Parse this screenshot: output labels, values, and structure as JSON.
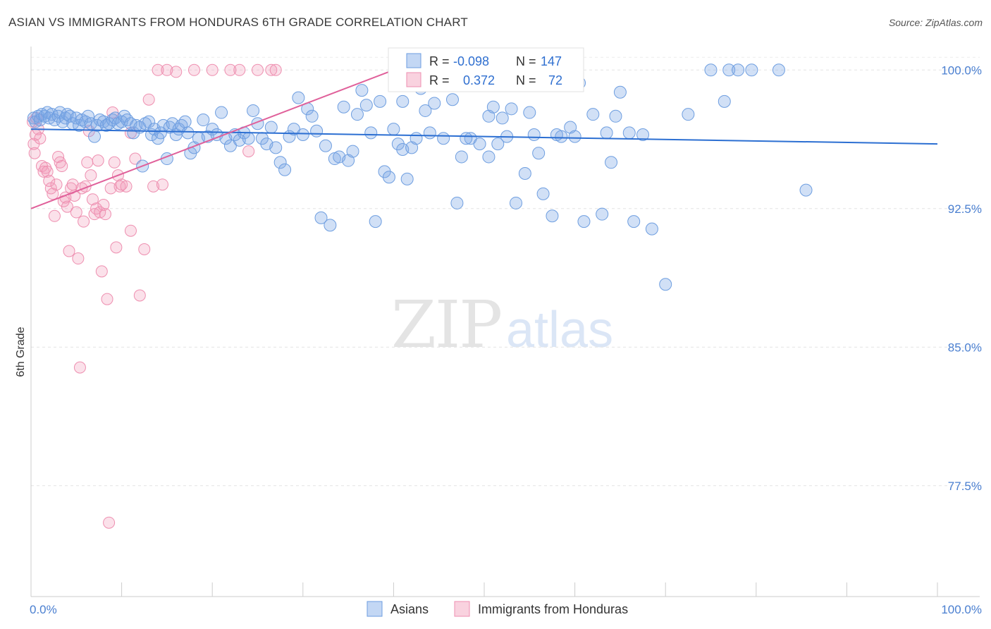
{
  "header": {
    "title": "ASIAN VS IMMIGRANTS FROM HONDURAS 6TH GRADE CORRELATION CHART",
    "source": "Source: ZipAtlas.com"
  },
  "watermark": {
    "zip": "ZIP",
    "atlas": "atlas"
  },
  "legend_top": {
    "rows": [
      {
        "r_label": "R =",
        "r_value": "-0.098",
        "n_label": "N =",
        "n_value": "147",
        "color": "#7aa7e6"
      },
      {
        "r_label": "R =",
        "r_value": "0.372",
        "n_label": "N =",
        "n_value": "72",
        "color": "#f29bb8"
      }
    ]
  },
  "legend_bottom": {
    "items": [
      {
        "label": "Asians",
        "color": "#7aa7e6"
      },
      {
        "label": "Immigrants from Honduras",
        "color": "#f29bb8"
      }
    ]
  },
  "colors": {
    "asian_fill": "rgba(122,167,230,0.35)",
    "asian_stroke": "#6e9ee0",
    "asian_line": "#2c6fd2",
    "honduras_fill": "rgba(242,155,184,0.30)",
    "honduras_stroke": "#ee8fb0",
    "honduras_line": "#e0609a"
  },
  "chart_data": {
    "type": "scatter",
    "title": "ASIAN VS IMMIGRANTS FROM HONDURAS 6TH GRADE CORRELATION CHART",
    "xlabel": "",
    "ylabel": "6th Grade",
    "xlim": [
      0,
      100
    ],
    "ylim": [
      71.5,
      101.5
    ],
    "x_ticks": [
      {
        "value": 0,
        "label": "0.0%"
      },
      {
        "value": 100,
        "label": "100.0%"
      }
    ],
    "y_ticks": [
      {
        "value": 100,
        "label": "100.0%"
      },
      {
        "value": 92.5,
        "label": "92.5%"
      },
      {
        "value": 85,
        "label": "85.0%"
      },
      {
        "value": 77.5,
        "label": "77.5%"
      }
    ],
    "grid": true,
    "legend_position": "top-center",
    "series": [
      {
        "name": "Asians",
        "r": -0.098,
        "n": 147,
        "trend": {
          "x": [
            0,
            100
          ],
          "y": [
            96.8,
            96.0
          ]
        },
        "points": [
          [
            0.3,
            97.4
          ],
          [
            0.5,
            97.2
          ],
          [
            0.8,
            97.5
          ],
          [
            1.0,
            97.3
          ],
          [
            1.2,
            97.6
          ],
          [
            1.5,
            97.5
          ],
          [
            1.8,
            97.7
          ],
          [
            2.0,
            97.4
          ],
          [
            2.3,
            97.6
          ],
          [
            2.6,
            97.3
          ],
          [
            3.0,
            97.5
          ],
          [
            3.2,
            97.7
          ],
          [
            3.5,
            97.2
          ],
          [
            3.8,
            97.4
          ],
          [
            4.0,
            97.6
          ],
          [
            4.3,
            97.5
          ],
          [
            4.6,
            97.1
          ],
          [
            5.0,
            97.4
          ],
          [
            5.3,
            97.0
          ],
          [
            5.6,
            97.3
          ],
          [
            6.0,
            97.2
          ],
          [
            6.3,
            97.5
          ],
          [
            6.6,
            97.1
          ],
          [
            7.0,
            96.4
          ],
          [
            7.3,
            97.0
          ],
          [
            7.6,
            97.3
          ],
          [
            8.0,
            97.2
          ],
          [
            8.3,
            97.0
          ],
          [
            8.6,
            97.1
          ],
          [
            9.0,
            97.3
          ],
          [
            9.3,
            97.4
          ],
          [
            9.6,
            97.1
          ],
          [
            10.0,
            97.2
          ],
          [
            10.3,
            97.5
          ],
          [
            10.6,
            97.3
          ],
          [
            11.0,
            97.1
          ],
          [
            11.3,
            96.6
          ],
          [
            11.6,
            97.0
          ],
          [
            12.0,
            96.9
          ],
          [
            12.3,
            94.8
          ],
          [
            12.6,
            97.1
          ],
          [
            13.0,
            97.2
          ],
          [
            13.3,
            96.5
          ],
          [
            13.6,
            96.8
          ],
          [
            14.0,
            96.3
          ],
          [
            14.3,
            96.6
          ],
          [
            14.6,
            97.0
          ],
          [
            15.0,
            95.2
          ],
          [
            15.3,
            96.9
          ],
          [
            15.6,
            97.1
          ],
          [
            16.0,
            96.5
          ],
          [
            16.3,
            96.8
          ],
          [
            16.6,
            97.0
          ],
          [
            17.0,
            97.2
          ],
          [
            17.3,
            96.6
          ],
          [
            17.6,
            95.5
          ],
          [
            18.0,
            95.8
          ],
          [
            18.5,
            96.3
          ],
          [
            19.0,
            97.3
          ],
          [
            19.5,
            96.4
          ],
          [
            20.0,
            96.8
          ],
          [
            20.5,
            96.5
          ],
          [
            21.0,
            97.7
          ],
          [
            21.5,
            96.3
          ],
          [
            22.0,
            95.9
          ],
          [
            22.5,
            96.5
          ],
          [
            23.0,
            96.2
          ],
          [
            23.5,
            96.6
          ],
          [
            24.0,
            96.3
          ],
          [
            24.5,
            97.8
          ],
          [
            25.0,
            97.1
          ],
          [
            25.5,
            96.3
          ],
          [
            26.0,
            96.0
          ],
          [
            26.5,
            96.9
          ],
          [
            27.0,
            95.8
          ],
          [
            27.5,
            95.0
          ],
          [
            28.0,
            94.6
          ],
          [
            28.5,
            96.4
          ],
          [
            29.0,
            96.8
          ],
          [
            29.5,
            98.5
          ],
          [
            30.0,
            96.5
          ],
          [
            30.5,
            97.9
          ],
          [
            31.0,
            97.5
          ],
          [
            31.5,
            96.7
          ],
          [
            32.0,
            92.0
          ],
          [
            32.5,
            95.9
          ],
          [
            33.0,
            91.6
          ],
          [
            33.5,
            95.2
          ],
          [
            34.0,
            95.3
          ],
          [
            34.5,
            98.0
          ],
          [
            35.0,
            95.1
          ],
          [
            35.5,
            95.6
          ],
          [
            36.0,
            97.6
          ],
          [
            36.5,
            98.9
          ],
          [
            37.0,
            98.1
          ],
          [
            37.5,
            96.6
          ],
          [
            38.0,
            91.8
          ],
          [
            38.5,
            98.3
          ],
          [
            39.0,
            94.5
          ],
          [
            39.5,
            94.2
          ],
          [
            40.0,
            96.8
          ],
          [
            40.5,
            96.0
          ],
          [
            41.0,
            95.7
          ],
          [
            41.5,
            94.1
          ],
          [
            42.0,
            95.8
          ],
          [
            42.5,
            96.3
          ],
          [
            43.0,
            99.0
          ],
          [
            43.5,
            97.8
          ],
          [
            44.5,
            98.2
          ],
          [
            45.5,
            96.3
          ],
          [
            46.5,
            98.4
          ],
          [
            47.0,
            92.8
          ],
          [
            47.5,
            95.3
          ],
          [
            48.5,
            96.3
          ],
          [
            49.5,
            96.0
          ],
          [
            50.5,
            95.3
          ],
          [
            51.5,
            96.0
          ],
          [
            52.5,
            96.4
          ],
          [
            53.5,
            92.8
          ],
          [
            54.5,
            94.4
          ],
          [
            55.5,
            96.5
          ],
          [
            56.5,
            93.3
          ],
          [
            57.5,
            92.1
          ],
          [
            58.5,
            96.4
          ],
          [
            59.5,
            96.9
          ],
          [
            61.0,
            91.8
          ],
          [
            62.0,
            97.6
          ],
          [
            63.0,
            92.2
          ],
          [
            64.0,
            95.0
          ],
          [
            65.0,
            98.8
          ],
          [
            66.5,
            91.8
          ],
          [
            67.5,
            96.5
          ],
          [
            68.5,
            91.4
          ],
          [
            70.0,
            88.4
          ],
          [
            72.5,
            97.6
          ],
          [
            75.0,
            100.0
          ],
          [
            77.0,
            100.0
          ],
          [
            78.0,
            100.0
          ],
          [
            79.5,
            100.0
          ],
          [
            82.5,
            100.0
          ],
          [
            76.5,
            98.3
          ],
          [
            85.5,
            93.5
          ],
          [
            48.0,
            96.3
          ],
          [
            52.0,
            97.4
          ],
          [
            44.0,
            96.6
          ],
          [
            41.0,
            98.3
          ],
          [
            58.0,
            96.5
          ],
          [
            63.5,
            96.6
          ],
          [
            56.0,
            95.5
          ],
          [
            50.5,
            97.5
          ],
          [
            55.0,
            97.7
          ],
          [
            60.0,
            96.4
          ],
          [
            64.5,
            97.5
          ],
          [
            66.0,
            96.6
          ],
          [
            60.5,
            99.3
          ],
          [
            53.0,
            97.9
          ],
          [
            51.0,
            98.0
          ]
        ]
      },
      {
        "name": "Immigrants from Honduras",
        "r": 0.372,
        "n": 72,
        "trend": {
          "x": [
            0,
            40
          ],
          "y": [
            92.5,
            100.0
          ]
        },
        "points": [
          [
            0.2,
            97.2
          ],
          [
            0.3,
            96.0
          ],
          [
            0.4,
            95.5
          ],
          [
            0.5,
            96.5
          ],
          [
            0.6,
            97.4
          ],
          [
            0.8,
            96.8
          ],
          [
            1.0,
            96.3
          ],
          [
            1.2,
            94.8
          ],
          [
            1.4,
            94.5
          ],
          [
            1.6,
            94.7
          ],
          [
            1.8,
            94.5
          ],
          [
            2.0,
            94.0
          ],
          [
            2.2,
            93.6
          ],
          [
            2.4,
            93.3
          ],
          [
            2.6,
            92.1
          ],
          [
            2.8,
            93.8
          ],
          [
            3.0,
            95.3
          ],
          [
            3.2,
            95.0
          ],
          [
            3.4,
            94.8
          ],
          [
            3.6,
            92.9
          ],
          [
            3.8,
            93.1
          ],
          [
            4.0,
            92.6
          ],
          [
            4.2,
            90.2
          ],
          [
            4.4,
            93.6
          ],
          [
            4.6,
            93.8
          ],
          [
            4.8,
            93.2
          ],
          [
            5.0,
            92.3
          ],
          [
            5.2,
            89.8
          ],
          [
            5.4,
            83.9
          ],
          [
            5.6,
            93.6
          ],
          [
            5.8,
            91.8
          ],
          [
            6.0,
            93.7
          ],
          [
            6.2,
            95.0
          ],
          [
            6.4,
            96.7
          ],
          [
            6.6,
            94.3
          ],
          [
            6.8,
            93.0
          ],
          [
            7.0,
            92.2
          ],
          [
            7.2,
            92.5
          ],
          [
            7.4,
            95.1
          ],
          [
            7.6,
            92.3
          ],
          [
            7.8,
            89.1
          ],
          [
            8.0,
            92.7
          ],
          [
            8.2,
            92.2
          ],
          [
            8.4,
            87.6
          ],
          [
            8.6,
            75.5
          ],
          [
            8.8,
            93.6
          ],
          [
            9.0,
            97.7
          ],
          [
            9.2,
            95.0
          ],
          [
            9.4,
            90.4
          ],
          [
            9.6,
            94.3
          ],
          [
            9.8,
            93.7
          ],
          [
            10.0,
            93.8
          ],
          [
            10.5,
            93.7
          ],
          [
            11.0,
            91.3
          ],
          [
            11.5,
            95.2
          ],
          [
            12.0,
            87.8
          ],
          [
            12.5,
            90.3
          ],
          [
            13.0,
            98.4
          ],
          [
            14.0,
            100.0
          ],
          [
            15.0,
            100.0
          ],
          [
            16.0,
            99.9
          ],
          [
            18.0,
            100.0
          ],
          [
            20.0,
            100.0
          ],
          [
            22.0,
            100.0
          ],
          [
            23.0,
            100.0
          ],
          [
            24.0,
            95.6
          ],
          [
            25.0,
            100.0
          ],
          [
            26.5,
            100.0
          ],
          [
            27.0,
            100.0
          ],
          [
            11.0,
            96.6
          ],
          [
            13.5,
            93.7
          ],
          [
            14.5,
            93.8
          ]
        ]
      }
    ]
  },
  "y_axis_label": "6th Grade"
}
